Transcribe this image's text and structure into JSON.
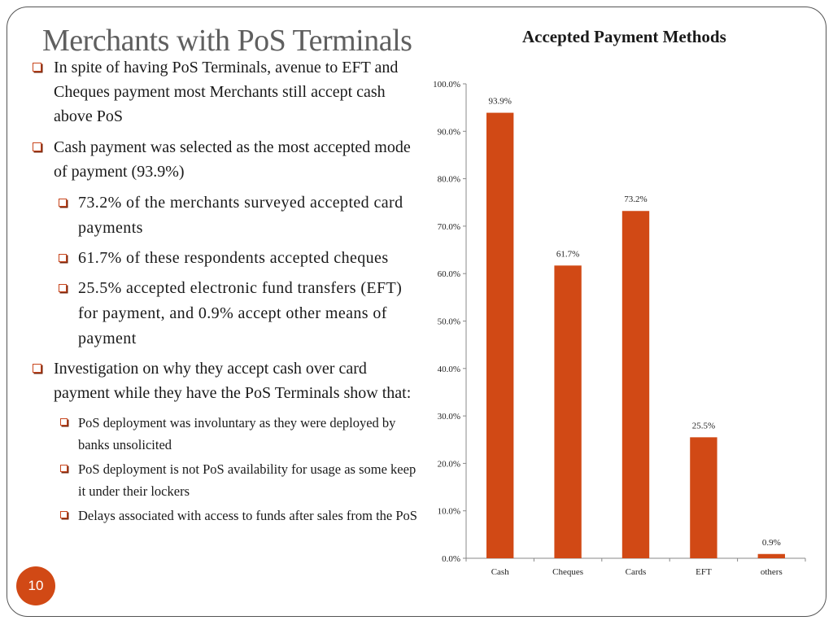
{
  "slide": {
    "title": "Merchants with PoS Terminals",
    "page_number": "10",
    "bullets": [
      {
        "level": 1,
        "text": "In spite of having PoS Terminals, avenue to EFT and Cheques payment most Merchants still accept cash above PoS"
      },
      {
        "level": 1,
        "text": "Cash payment was selected as the most accepted mode of payment (93.9%)"
      },
      {
        "level": 2,
        "text": "73.2% of the merchants surveyed accepted card payments"
      },
      {
        "level": 2,
        "text": "61.7% of these respondents accepted cheques"
      },
      {
        "level": 2,
        "text": "25.5% accepted electronic fund transfers (EFT) for payment, and 0.9% accept other means of payment"
      },
      {
        "level": 1,
        "text": "Investigation on why they accept cash over card payment while they have the PoS Terminals show that:"
      },
      {
        "level": 3,
        "text": "PoS deployment was involuntary as they were deployed by banks unsolicited"
      },
      {
        "level": 3,
        "text": "PoS deployment is not PoS availability for usage as some keep it under their lockers"
      },
      {
        "level": 3,
        "text": "Delays associated with access to funds after sales from the PoS"
      }
    ]
  },
  "chart_data": {
    "type": "bar",
    "title": "Accepted Payment Methods",
    "categories": [
      "Cash",
      "Cheques",
      "Cards",
      "EFT",
      "others"
    ],
    "values": [
      93.9,
      61.7,
      73.2,
      25.5,
      0.9
    ],
    "value_labels": [
      "93.9%",
      "61.7%",
      "73.2%",
      "25.5%",
      "0.9%"
    ],
    "y_ticks": [
      "0.0%",
      "10.0%",
      "20.0%",
      "30.0%",
      "40.0%",
      "50.0%",
      "60.0%",
      "70.0%",
      "80.0%",
      "90.0%",
      "100.0%"
    ],
    "ylim": [
      0,
      100
    ],
    "grid": false,
    "legend": "none",
    "bar_color": "#d14915"
  }
}
